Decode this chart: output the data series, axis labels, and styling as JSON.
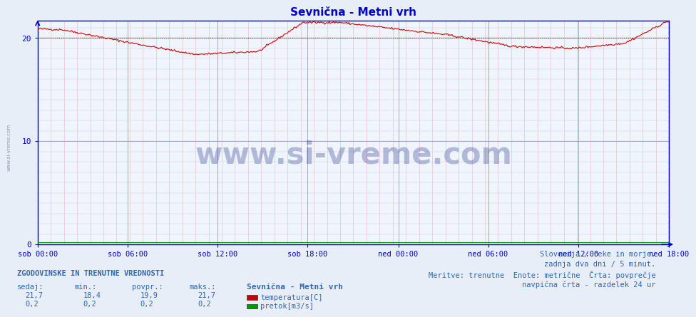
{
  "title": "Sevnična - Metni vrh",
  "title_color": "#0000cc",
  "bg_color": "#e8eef8",
  "plot_bg_color": "#f0f4fc",
  "grid_color_major": "#9999bb",
  "grid_color_minor": "#ddaaaa",
  "x_labels": [
    "sob 00:00",
    "sob 06:00",
    "sob 12:00",
    "sob 18:00",
    "ned 00:00",
    "ned 06:00",
    "ned 12:00",
    "ned 18:00"
  ],
  "x_ticks_norm": [
    0.0,
    0.142857,
    0.285714,
    0.428571,
    0.571429,
    0.714286,
    0.857143,
    1.0
  ],
  "ylim_max": 21.7,
  "yticks": [
    0,
    10,
    20
  ],
  "temp_color": "#cc0000",
  "flow_color": "#009900",
  "avg_line_color": "#cc0000",
  "avg_value": 20.0,
  "vertical_line_color": "#cc00cc",
  "axis_color": "#0000cc",
  "tick_color": "#0000cc",
  "text_color": "#3366aa",
  "watermark_text": "www.si-vreme.com",
  "watermark_color": "#223388",
  "subtitle_lines": [
    "Slovenija / reke in morje.",
    "zadnja dva dni / 5 minut.",
    "Meritve: trenutne  Enote: metrične  Črta: povprečje",
    "navpična črta - razdelek 24 ur"
  ],
  "legend_title": "Sevnična - Metni vrh",
  "legend_items": [
    {
      "label": "temperatura[C]",
      "color": "#cc0000"
    },
    {
      "label": "pretok[m3/s]",
      "color": "#009900"
    }
  ],
  "stats_header": "ZGODOVINSKE IN TRENUTNE VREDNOSTI",
  "stats_cols": [
    "sedaj:",
    "min.:",
    "povpr.:",
    "maks.:"
  ],
  "stats_temp": [
    "21,7",
    "18,4",
    "19,9",
    "21,7"
  ],
  "stats_flow": [
    "0,2",
    "0,2",
    "0,2",
    "0,2"
  ],
  "n_points": 577
}
